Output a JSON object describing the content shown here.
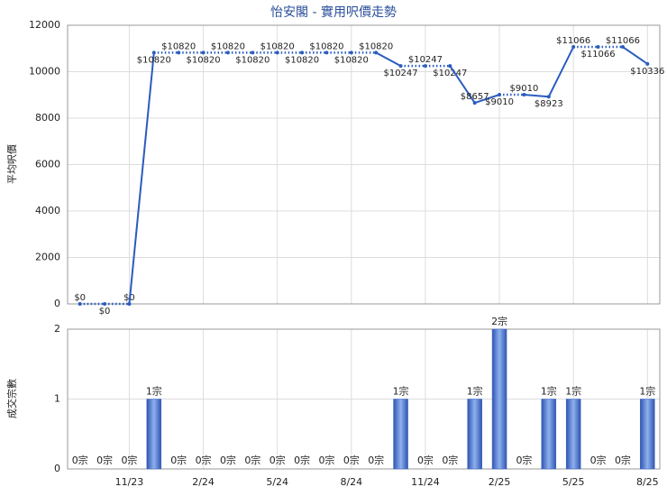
{
  "chart_data": [
    {
      "type": "line",
      "title": "怡安閣 - 實用呎價走勢",
      "y_label": "平均呎價",
      "color": "#2a5cbf",
      "values": [
        0,
        0,
        0,
        10820,
        10820,
        10820,
        10820,
        10820,
        10820,
        10820,
        10820,
        10820,
        10820,
        10247,
        10247,
        10247,
        8657,
        9010,
        9010,
        8923,
        11066,
        11066,
        11066,
        10336
      ],
      "value_labels": [
        "$0",
        "$0",
        "$0",
        "$10820",
        "$10820",
        "$10820",
        "$10820",
        "$10820",
        "$10820",
        "$10820",
        "$10820",
        "$10820",
        "$10820",
        "$10247",
        "$10247",
        "$10247",
        "$8657",
        "$9010",
        "$9010",
        "$8923",
        "$11066",
        "$11066",
        "$11066",
        "$10336"
      ],
      "ylim": [
        0,
        12000
      ],
      "yticks": [
        0,
        2000,
        4000,
        6000,
        8000,
        10000,
        12000
      ],
      "grid": true
    },
    {
      "type": "bar",
      "y_label": "成交宗數",
      "color": "#3a64c8",
      "categories": [
        null,
        null,
        "11/23",
        null,
        null,
        "2/24",
        null,
        null,
        "5/24",
        null,
        null,
        "8/24",
        null,
        null,
        "11/24",
        null,
        null,
        "2/25",
        null,
        null,
        "5/25",
        null,
        null,
        "8/25"
      ],
      "values": [
        0,
        0,
        0,
        1,
        0,
        0,
        0,
        0,
        0,
        0,
        0,
        0,
        0,
        1,
        0,
        0,
        1,
        2,
        0,
        1,
        1,
        0,
        0,
        1
      ],
      "value_labels": [
        "0宗",
        "0宗",
        "0宗",
        "1宗",
        "0宗",
        "0宗",
        "0宗",
        "0宗",
        "0宗",
        "0宗",
        "0宗",
        "0宗",
        "0宗",
        "1宗",
        "0宗",
        "0宗",
        "1宗",
        "2宗",
        "0宗",
        "1宗",
        "1宗",
        "0宗",
        "0宗",
        "1宗"
      ],
      "ylim": [
        0,
        2
      ],
      "yticks": [
        0,
        1,
        2
      ],
      "grid": true
    }
  ]
}
